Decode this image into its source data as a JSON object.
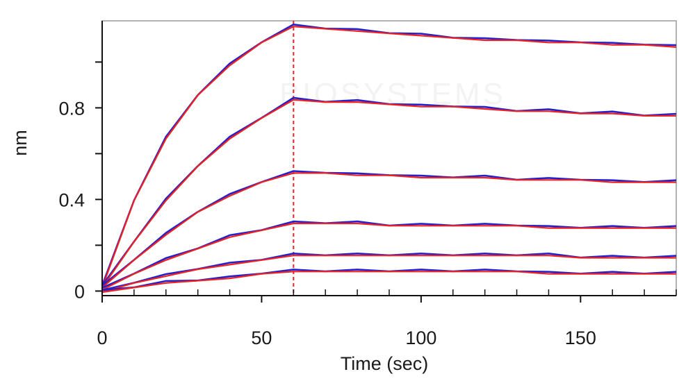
{
  "chart_data": {
    "type": "line",
    "title": "",
    "xlabel": "Time (sec)",
    "ylabel": "nm",
    "xlim": [
      0,
      180
    ],
    "ylim": [
      -0.02,
      1.18
    ],
    "x_ticks": [
      0,
      50,
      100,
      150
    ],
    "x_tick_labels": [
      "0",
      "50",
      "100",
      "150"
    ],
    "x_minor_step": 10,
    "y_ticks": [
      0,
      0.4,
      0.8
    ],
    "y_tick_labels": [
      "0",
      "0.4",
      "0.8"
    ],
    "y_minor_ticks": [
      0.2,
      0.6,
      1.0
    ],
    "grid": false,
    "legend": "none",
    "association_end_time": 60,
    "colors": {
      "measured": "#2222cc",
      "fit": "#ee2222",
      "marker": "#ee2222",
      "axis": "#111111",
      "frame": "#999999"
    },
    "watermark": "BIOSYSTEMS",
    "series": [
      {
        "x": [
          0,
          10,
          20,
          30,
          40,
          50,
          60,
          70,
          80,
          90,
          100,
          110,
          120,
          130,
          140,
          150,
          160,
          170,
          180
        ],
        "values": [
          0.02,
          0.4,
          0.67,
          0.86,
          0.99,
          1.09,
          1.16,
          1.15,
          1.14,
          1.13,
          1.12,
          1.11,
          1.1,
          1.1,
          1.09,
          1.09,
          1.08,
          1.08,
          1.07
        ]
      },
      {
        "x": [
          0,
          10,
          20,
          30,
          40,
          50,
          60,
          70,
          80,
          90,
          100,
          110,
          120,
          130,
          140,
          150,
          160,
          170,
          180
        ],
        "values": [
          0.02,
          0.22,
          0.4,
          0.55,
          0.67,
          0.76,
          0.84,
          0.83,
          0.83,
          0.82,
          0.81,
          0.81,
          0.8,
          0.79,
          0.79,
          0.78,
          0.78,
          0.77,
          0.77
        ]
      },
      {
        "x": [
          0,
          10,
          20,
          30,
          40,
          50,
          60,
          70,
          80,
          90,
          100,
          110,
          120,
          130,
          140,
          150,
          160,
          170,
          180
        ],
        "values": [
          0.02,
          0.14,
          0.25,
          0.35,
          0.42,
          0.48,
          0.52,
          0.52,
          0.51,
          0.51,
          0.5,
          0.5,
          0.5,
          0.49,
          0.49,
          0.49,
          0.48,
          0.48,
          0.48
        ]
      },
      {
        "x": [
          0,
          10,
          20,
          30,
          40,
          50,
          60,
          70,
          80,
          90,
          100,
          110,
          120,
          130,
          140,
          150,
          160,
          170,
          180
        ],
        "values": [
          0.01,
          0.08,
          0.14,
          0.19,
          0.24,
          0.27,
          0.3,
          0.3,
          0.3,
          0.29,
          0.29,
          0.29,
          0.29,
          0.29,
          0.28,
          0.28,
          0.28,
          0.28,
          0.28
        ]
      },
      {
        "x": [
          0,
          10,
          20,
          30,
          40,
          50,
          60,
          70,
          80,
          90,
          100,
          110,
          120,
          130,
          140,
          150,
          160,
          170,
          180
        ],
        "values": [
          0.0,
          0.04,
          0.07,
          0.1,
          0.12,
          0.14,
          0.16,
          0.16,
          0.16,
          0.16,
          0.16,
          0.16,
          0.16,
          0.16,
          0.16,
          0.15,
          0.15,
          0.15,
          0.15
        ]
      },
      {
        "x": [
          0,
          10,
          20,
          30,
          40,
          50,
          60,
          70,
          80,
          90,
          100,
          110,
          120,
          130,
          140,
          150,
          160,
          170,
          180
        ],
        "values": [
          0.0,
          0.02,
          0.04,
          0.05,
          0.06,
          0.08,
          0.09,
          0.09,
          0.09,
          0.09,
          0.09,
          0.09,
          0.09,
          0.09,
          0.08,
          0.08,
          0.08,
          0.08,
          0.08
        ]
      }
    ]
  }
}
